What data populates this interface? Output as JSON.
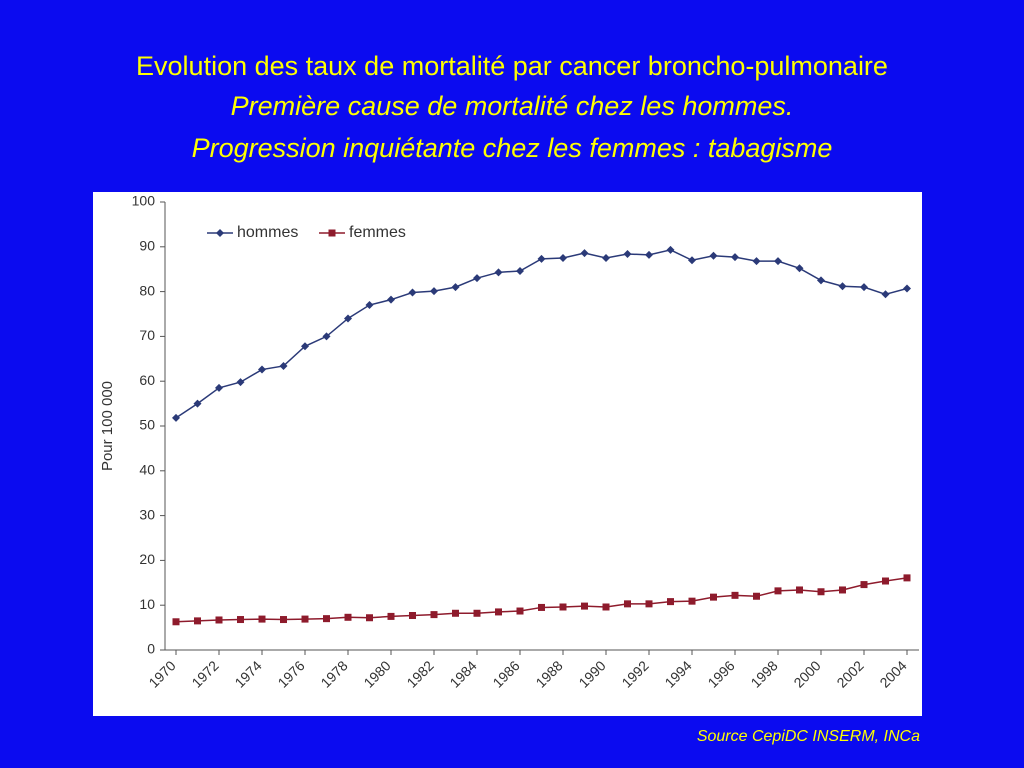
{
  "title": [
    "Evolution des taux de mortalité par cancer broncho-pulmonaire"
  ],
  "subtitle": [
    "Première cause de mortalité chez les hommes.",
    "Progression inquiétante chez les femmes : tabagisme"
  ],
  "source": "Source CepiDC INSERM, INCa",
  "chart_data": {
    "type": "line",
    "y_label": "Pour 100 000",
    "x": [
      1970,
      1971,
      1972,
      1973,
      1974,
      1975,
      1976,
      1977,
      1978,
      1979,
      1980,
      1981,
      1982,
      1983,
      1984,
      1985,
      1986,
      1987,
      1988,
      1989,
      1990,
      1991,
      1992,
      1993,
      1994,
      1995,
      1996,
      1997,
      1998,
      1999,
      2000,
      2001,
      2002,
      2003,
      2004
    ],
    "series": [
      {
        "name": "hommes",
        "color": "#2b3a78",
        "marker": "diamond",
        "values": [
          51.8,
          55,
          58.5,
          59.8,
          62.6,
          63.4,
          67.8,
          70,
          74,
          77,
          78.2,
          79.8,
          80.1,
          81,
          83,
          84.3,
          84.6,
          87.3,
          87.5,
          88.6,
          87.5,
          88.4,
          88.2,
          89.3,
          87,
          88,
          87.7,
          86.8,
          86.8,
          85.2,
          82.5,
          81.2,
          81,
          79.4,
          80.7
        ]
      },
      {
        "name": "femmes",
        "color": "#8e1b2c",
        "marker": "square",
        "values": [
          6.3,
          6.5,
          6.7,
          6.8,
          6.9,
          6.8,
          6.9,
          7.0,
          7.3,
          7.2,
          7.5,
          7.7,
          7.9,
          8.2,
          8.2,
          8.5,
          8.7,
          9.5,
          9.6,
          9.8,
          9.6,
          10.3,
          10.3,
          10.8,
          10.9,
          11.8,
          12.2,
          12.0,
          13.2,
          13.4,
          13.0,
          13.4,
          14.6,
          15.4,
          16.1
        ]
      }
    ],
    "xlim": [
      1970,
      2004
    ],
    "xticks": [
      1970,
      1972,
      1974,
      1976,
      1978,
      1980,
      1982,
      1984,
      1986,
      1988,
      1990,
      1992,
      1994,
      1996,
      1998,
      2000,
      2002,
      2004
    ],
    "ylim": [
      0,
      100
    ],
    "yticks": [
      0,
      10,
      20,
      30,
      40,
      50,
      60,
      70,
      80,
      90,
      100
    ],
    "legend": "top-left",
    "grid": false
  }
}
